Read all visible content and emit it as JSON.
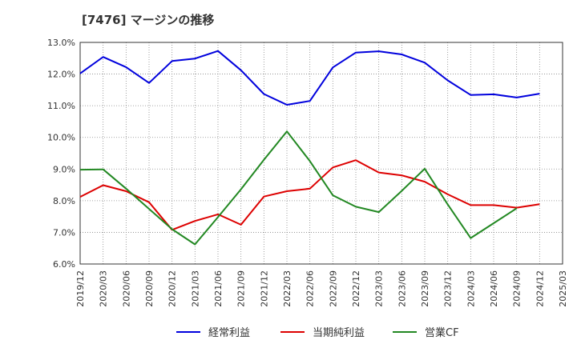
{
  "title": "[7476]  マージンの推移",
  "chart_data": {
    "type": "line",
    "title": "[7476]  マージンの推移",
    "xlabel": "",
    "ylabel": "",
    "ylim": [
      6.0,
      13.0
    ],
    "yticks": [
      "6.0%",
      "7.0%",
      "8.0%",
      "9.0%",
      "10.0%",
      "11.0%",
      "12.0%",
      "13.0%"
    ],
    "categories": [
      "2019/12",
      "2020/03",
      "2020/06",
      "2020/09",
      "2020/12",
      "2021/03",
      "2021/06",
      "2021/09",
      "2021/12",
      "2022/03",
      "2022/06",
      "2022/09",
      "2022/12",
      "2023/03",
      "2023/06",
      "2023/09",
      "2023/12",
      "2024/03",
      "2024/06",
      "2024/09",
      "2024/12",
      "2025/03"
    ],
    "grid": true,
    "legend_position": "bottom",
    "series": [
      {
        "name": "経常利益",
        "color": "#0000dd",
        "values": [
          12.02,
          12.54,
          12.22,
          11.72,
          12.41,
          12.49,
          12.73,
          12.12,
          11.37,
          11.03,
          11.15,
          12.21,
          12.68,
          12.72,
          12.62,
          12.36,
          11.8,
          11.34,
          11.36,
          11.26,
          11.38,
          null
        ]
      },
      {
        "name": "当期純利益",
        "color": "#dd0000",
        "values": [
          8.12,
          8.49,
          8.3,
          7.95,
          7.08,
          7.36,
          7.57,
          7.24,
          8.13,
          8.3,
          8.38,
          9.05,
          9.28,
          8.89,
          8.8,
          8.6,
          8.2,
          7.86,
          7.86,
          7.78,
          7.89,
          null
        ]
      },
      {
        "name": "営業CF",
        "color": "#228822",
        "values": [
          8.98,
          8.99,
          8.38,
          7.74,
          7.1,
          6.62,
          7.48,
          8.36,
          9.29,
          10.19,
          9.25,
          8.17,
          7.81,
          7.64,
          8.31,
          9.01,
          7.88,
          6.82,
          7.29,
          7.76,
          null,
          null
        ]
      }
    ]
  }
}
